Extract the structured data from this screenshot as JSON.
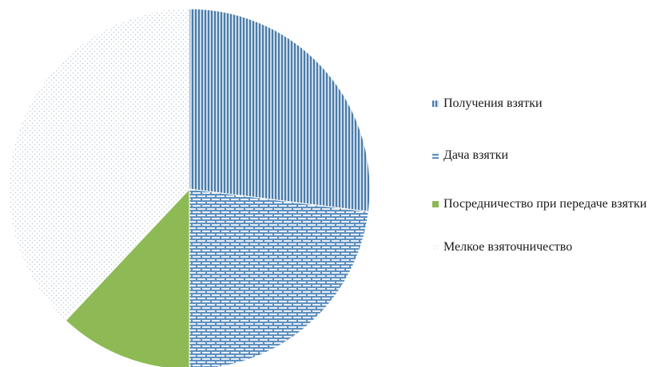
{
  "chart_data": {
    "type": "pie",
    "categories": [
      "Получения взятки",
      "Дача взятки",
      "Посредничество при передаче взятки",
      "Мелкое взяточничество"
    ],
    "values": [
      27,
      23,
      12,
      38
    ],
    "title": "",
    "legend_position": "right",
    "start_angle": "12 o'clock, clockwise",
    "colors": {
      "receiving": "#9bbad6",
      "giving": "#b7cfe6",
      "intermediation": "#8dba54",
      "petty": "#e3e9ef",
      "receiving_stripe": "#4c7ba8",
      "giving_brick": "#ffffff",
      "petty_dot": "#b9c7d3"
    }
  }
}
